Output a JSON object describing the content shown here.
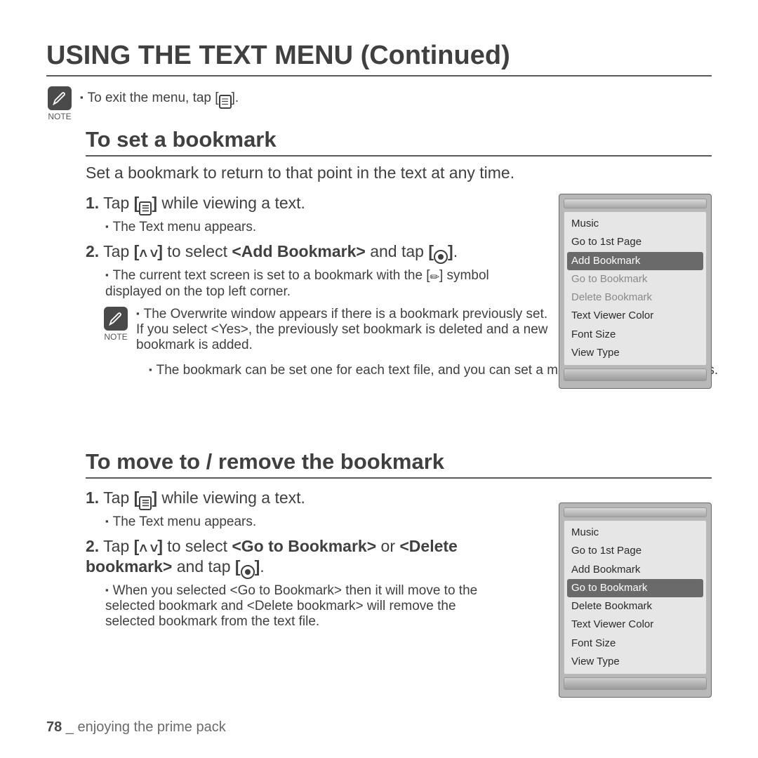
{
  "page": {
    "title": "USING THE TEXT MENU (Continued)",
    "footer_page": "78",
    "footer_sep": " _ ",
    "footer_text": "enjoying the prime pack"
  },
  "note_top": "To exit the menu, tap [",
  "note_top_end": "].",
  "note_label": "NOTE",
  "section1": {
    "heading": "To set a bookmark",
    "intro": "Set a bookmark to return to that point in the text at any time.",
    "step1_num": "1.",
    "step1_a": "Tap ",
    "step1_b": " while viewing a text.",
    "step1_sub": "The Text menu appears.",
    "step2_num": "2.",
    "step2_a": "Tap ",
    "step2_b": " to select ",
    "step2_c": "<Add Bookmark>",
    "step2_d": " and tap ",
    "step2_e": ".",
    "step2_sub1_a": "The current text screen is set to a bookmark with the [",
    "step2_sub1_b": "] symbol displayed on the top left corner.",
    "note2_a": "The Overwrite window appears if there is a bookmark previously set. If you select <Yes>, the previously set bookmark is deleted and a new bookmark is added.",
    "note2_b": "The bookmark can be set one for each text file, and you can set a maximum of 100 bookmarks."
  },
  "section2": {
    "heading": "To move to / remove the bookmark",
    "step1_num": "1.",
    "step1_a": "Tap ",
    "step1_b": " while viewing a text.",
    "step1_sub": "The Text menu appears.",
    "step2_num": "2.",
    "step2_a": "Tap ",
    "step2_b": " to select ",
    "step2_c": "<Go to Bookmark>",
    "step2_d": " or ",
    "step2_e": "<Delete bookmark>",
    "step2_f": " and tap ",
    "step2_g": ".",
    "step2_sub": "When you selected <Go to Bookmark> then it will move to the selected bookmark and <Delete bookmark> will remove the selected bookmark from the text file."
  },
  "device_menu": {
    "items": [
      {
        "label": "Music",
        "state": "normal"
      },
      {
        "label": "Go to 1st Page",
        "state": "normal"
      },
      {
        "label": "Add Bookmark",
        "state": "selected"
      },
      {
        "label": "Go to Bookmark",
        "state": "dim"
      },
      {
        "label": "Delete Bookmark",
        "state": "dim"
      },
      {
        "label": "Text Viewer Color",
        "state": "normal"
      },
      {
        "label": "Font Size",
        "state": "normal"
      },
      {
        "label": "View Type",
        "state": "normal"
      }
    ]
  },
  "device_menu2": {
    "items": [
      {
        "label": "Music",
        "state": "normal"
      },
      {
        "label": "Go to 1st Page",
        "state": "normal"
      },
      {
        "label": "Add Bookmark",
        "state": "normal"
      },
      {
        "label": "Go to Bookmark",
        "state": "selected"
      },
      {
        "label": "Delete Bookmark",
        "state": "normal"
      },
      {
        "label": "Text Viewer Color",
        "state": "normal"
      },
      {
        "label": "Font Size",
        "state": "normal"
      },
      {
        "label": "View Type",
        "state": "normal"
      }
    ]
  },
  "colors": {
    "text": "#404040",
    "rule": "#5a5a5a",
    "device_bg": "#b8b8b8",
    "menu_bg": "#e6e6e6",
    "selected_bg": "#6a6a6a",
    "dim_text": "#8a8a8a"
  }
}
